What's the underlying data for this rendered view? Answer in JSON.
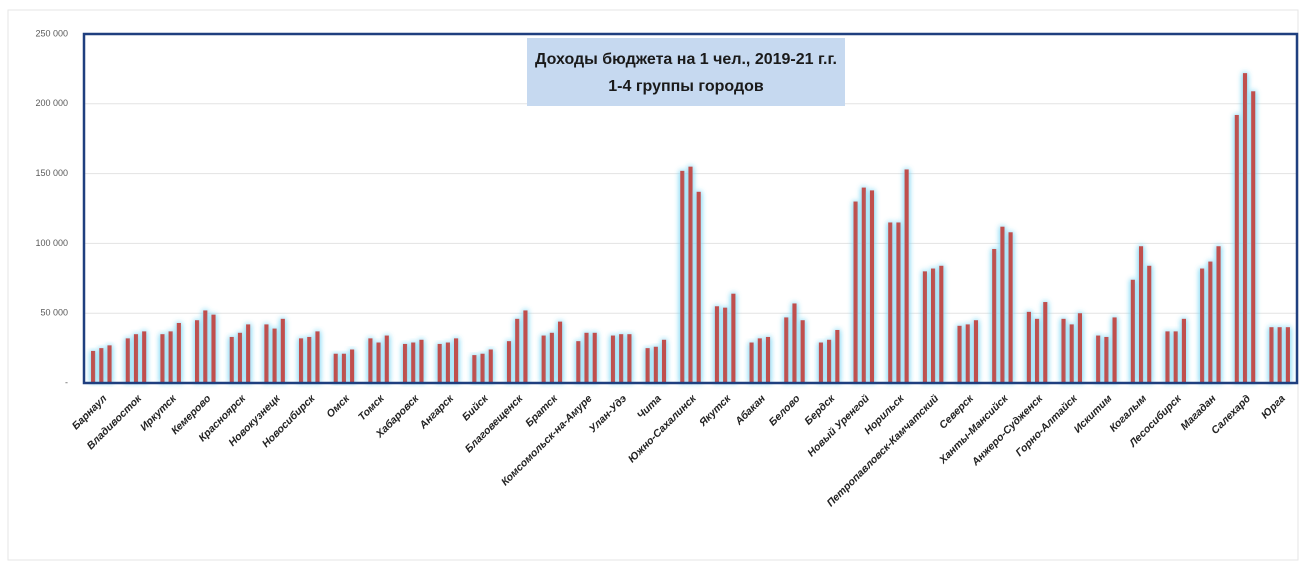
{
  "chart_data": {
    "type": "bar",
    "title": "Доходы бюджета на 1 чел., 2019-21 г.г.",
    "subtitle": "1-4 группы городов",
    "categories": [
      "Барнаул",
      "Владивосток",
      "Иркутск",
      "Кемерово",
      "Красноярск",
      "Новокузнецк",
      "Новосибирск",
      "Омск",
      "Томск",
      "Хабаровск",
      "Ангарск",
      "Бийск",
      "Благовещенск",
      "Братск",
      "Комсомольск-на-Амуре",
      "Улан-Удэ",
      "Чита",
      "Южно-Сахалинск",
      "Якутск",
      "Абакан",
      "Белово",
      "Бердск",
      "Новый Уренгой",
      "Норильск",
      "Петропавловск-Камчатский",
      "Северск",
      "Ханты-Мансийск",
      "Анжеро-Судженск",
      "Горно-Алтайск",
      "Искитим",
      "Когалым",
      "Лесосибирск",
      "Магадан",
      "Салехард",
      "Юрга"
    ],
    "series": [
      {
        "color": "#c0504d",
        "values": [
          23000,
          32000,
          35000,
          45000,
          33000,
          42000,
          32000,
          21000,
          32000,
          28000,
          28000,
          20000,
          30000,
          34000,
          30000,
          34000,
          25000,
          152000,
          55000,
          29000,
          47000,
          29000,
          130000,
          115000,
          80000,
          41000,
          96000,
          51000,
          46000,
          34000,
          74000,
          37000,
          82000,
          192000,
          40000
        ]
      },
      {
        "color": "#c0504d",
        "values": [
          25000,
          35000,
          37000,
          52000,
          36000,
          39000,
          33000,
          21000,
          29000,
          29000,
          29000,
          21000,
          46000,
          36000,
          36000,
          35000,
          26000,
          155000,
          54000,
          32000,
          57000,
          31000,
          140000,
          115000,
          82000,
          42000,
          112000,
          46000,
          42000,
          33000,
          98000,
          37000,
          87000,
          222000,
          40000
        ]
      },
      {
        "color": "#c0504d",
        "values": [
          27000,
          37000,
          43000,
          49000,
          42000,
          46000,
          37000,
          24000,
          34000,
          31000,
          32000,
          24000,
          52000,
          44000,
          36000,
          35000,
          31000,
          137000,
          64000,
          33000,
          45000,
          38000,
          138000,
          153000,
          84000,
          45000,
          108000,
          58000,
          50000,
          47000,
          84000,
          46000,
          98000,
          209000,
          40000
        ]
      }
    ],
    "ylim": [
      0,
      250000
    ],
    "yticks": [
      {
        "value": 0,
        "label": "-"
      },
      {
        "value": 50000,
        "label": "50 000"
      },
      {
        "value": 100000,
        "label": "100 000"
      },
      {
        "value": 150000,
        "label": "150 000"
      },
      {
        "value": 200000,
        "label": "200 000"
      },
      {
        "value": 250000,
        "label": "250 000"
      }
    ],
    "grid": true
  }
}
